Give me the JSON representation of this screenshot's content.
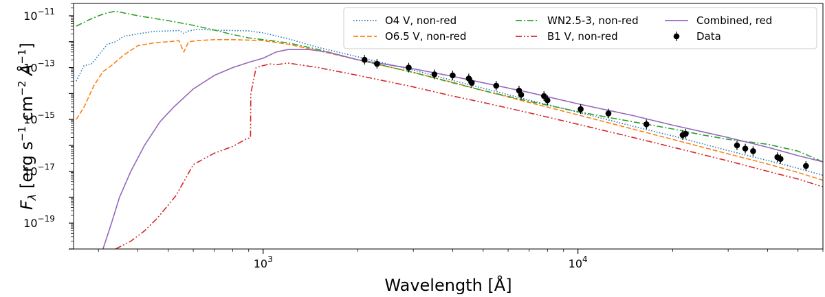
{
  "chart_data": {
    "type": "line",
    "xscale": "log",
    "yscale": "log",
    "xlim": [
      250,
      60000
    ],
    "ylim": [
      1e-20,
      3e-11
    ],
    "xlabel": "Wavelength [Å]",
    "ylabel": "F_λ [erg s^-1 cm^-2 Å^-1]",
    "xticks": [
      {
        "value": 1000,
        "base": "10",
        "exp": "3"
      },
      {
        "value": 10000,
        "base": "10",
        "exp": "4"
      }
    ],
    "yticks": [
      {
        "value": 1e-11,
        "base": "10",
        "exp": "−11"
      },
      {
        "value": 1e-13,
        "base": "10",
        "exp": "−13"
      },
      {
        "value": 1e-15,
        "base": "10",
        "exp": "−15"
      },
      {
        "value": 1e-17,
        "base": "10",
        "exp": "−17"
      },
      {
        "value": 1e-19,
        "base": "10",
        "exp": "−19"
      }
    ],
    "legend_location": "top-right",
    "series": [
      {
        "name": "O4 V, non-red",
        "color": "#1f77b4",
        "dash": "dotted",
        "x": [
          255,
          270,
          285,
          300,
          320,
          340,
          360,
          400,
          450,
          500,
          540,
          560,
          580,
          620,
          700,
          800,
          900,
          1000,
          1200,
          1500,
          2000,
          3000,
          4000,
          5000,
          7000,
          10000,
          15000,
          20000,
          30000,
          40000,
          50000,
          60000
        ],
        "y": [
          3e-14,
          1.2e-13,
          1.4e-13,
          3e-13,
          8e-13,
          1e-12,
          1.6e-12,
          2e-12,
          2.5e-12,
          2.6e-12,
          2.7e-12,
          2.1e-12,
          2.6e-12,
          3e-12,
          2.8e-12,
          2.7e-12,
          2.6e-12,
          2.2e-12,
          1.3e-12,
          6e-13,
          2.6e-13,
          8e-14,
          3.2e-14,
          1.6e-14,
          5.6e-15,
          1.9e-15,
          5.4e-16,
          2.3e-16,
          6.3e-17,
          2.6e-17,
          1.3e-17,
          7e-18
        ]
      },
      {
        "name": "O6.5 V, non-red",
        "color": "#ff7f0e",
        "dash": "dashed",
        "x": [
          255,
          270,
          290,
          310,
          330,
          360,
          400,
          450,
          500,
          540,
          560,
          580,
          620,
          700,
          800,
          1000,
          1200,
          1500,
          2000,
          3000,
          4000,
          5000,
          7000,
          10000,
          15000,
          20000,
          30000,
          40000,
          50000,
          60000
        ],
        "y": [
          1e-15,
          3e-15,
          2e-14,
          7e-14,
          1.2e-13,
          3e-13,
          7e-13,
          9e-13,
          1e-12,
          1.1e-12,
          4e-13,
          1e-12,
          1.1e-12,
          1.2e-12,
          1.2e-12,
          1.1e-12,
          8e-13,
          4.5e-13,
          2e-13,
          6.5e-14,
          2.7e-14,
          1.3e-14,
          4.5e-15,
          1.5e-15,
          4.2e-16,
          1.7e-16,
          4.7e-17,
          1.9e-17,
          9e-18,
          4.5e-18
        ]
      },
      {
        "name": "WN2.5-3, non-red",
        "color": "#2ca02c",
        "dash": "dashdot",
        "x": [
          255,
          280,
          300,
          320,
          340,
          400,
          500,
          600,
          700,
          800,
          900,
          1000,
          1200,
          1500,
          2000,
          3000,
          4000,
          5000,
          7000,
          10000,
          13000,
          16000,
          20000,
          25000,
          30000,
          40000,
          50000,
          60000
        ],
        "y": [
          4e-12,
          7e-12,
          1e-11,
          1.3e-11,
          1.5e-11,
          1e-11,
          6.5e-12,
          4.3e-12,
          2.8e-12,
          1.9e-12,
          1.4e-12,
          1.2e-12,
          9e-13,
          5e-13,
          2e-13,
          6.5e-14,
          2.6e-14,
          1.3e-14,
          5e-15,
          2e-15,
          1.1e-15,
          7e-16,
          4.3e-16,
          2.5e-16,
          1.7e-16,
          1.1e-16,
          6e-17,
          2.3e-17
        ]
      },
      {
        "name": "B1 V, non-red",
        "color": "#d62728",
        "dash": "dashdotdot",
        "x": [
          340,
          380,
          420,
          460,
          500,
          530,
          560,
          600,
          700,
          800,
          880,
          912,
          914,
          950,
          1000,
          1060,
          1100,
          1200,
          1500,
          2000,
          3000,
          4000,
          5000,
          7000,
          10000,
          15000,
          20000,
          30000,
          40000,
          50000,
          60000
        ],
        "y": [
          1e-20,
          2e-20,
          5e-20,
          1.5e-19,
          5e-19,
          1.2e-18,
          4e-18,
          1.8e-17,
          5e-17,
          9e-17,
          1.7e-16,
          2e-16,
          1e-14,
          1e-13,
          1.2e-13,
          1.4e-13,
          1.3e-13,
          1.5e-13,
          1e-13,
          5e-14,
          1.8e-14,
          8e-15,
          4.5e-15,
          1.8e-15,
          6.5e-16,
          2e-16,
          8.5e-17,
          2.5e-17,
          1e-17,
          5e-18,
          2.5e-18
        ]
      },
      {
        "name": "Combined, red",
        "color": "#9467bd",
        "dash": "solid",
        "x": [
          310,
          330,
          350,
          380,
          420,
          470,
          520,
          600,
          700,
          800,
          900,
          1000,
          1100,
          1200,
          1400,
          1600,
          2000,
          3000,
          4000,
          5000,
          7000,
          10000,
          15000,
          20000,
          30000,
          40000,
          50000,
          60000
        ],
        "y": [
          1e-20,
          1e-19,
          1e-18,
          1e-17,
          1e-16,
          8e-16,
          3e-15,
          1.5e-14,
          5e-14,
          1e-13,
          1.6e-13,
          2.3e-13,
          4e-13,
          5e-13,
          5e-13,
          4e-13,
          2e-13,
          9e-14,
          4.6e-14,
          2.6e-14,
          1.1e-14,
          4e-15,
          1.4e-15,
          6e-16,
          2e-16,
          8.5e-17,
          4e-17,
          2.3e-17
        ]
      }
    ],
    "data_points": {
      "name": "Data",
      "color": "#000000",
      "marker": "circle",
      "x": [
        2100,
        2300,
        2900,
        3500,
        4000,
        4500,
        4600,
        5500,
        6500,
        6600,
        7800,
        8000,
        10200,
        12500,
        16500,
        21500,
        22000,
        32000,
        34000,
        36000,
        43000,
        44000,
        53000
      ],
      "y": [
        2e-13,
        1.4e-13,
        1e-13,
        5.5e-14,
        5e-14,
        3.8e-14,
        2.6e-14,
        2e-14,
        1.3e-14,
        9e-15,
        8e-15,
        5.5e-15,
        2.5e-15,
        1.7e-15,
        6.5e-16,
        2.5e-16,
        2.8e-16,
        1e-16,
        7.5e-17,
        6e-17,
        3.5e-17,
        3e-17,
        1.6e-17
      ]
    }
  }
}
